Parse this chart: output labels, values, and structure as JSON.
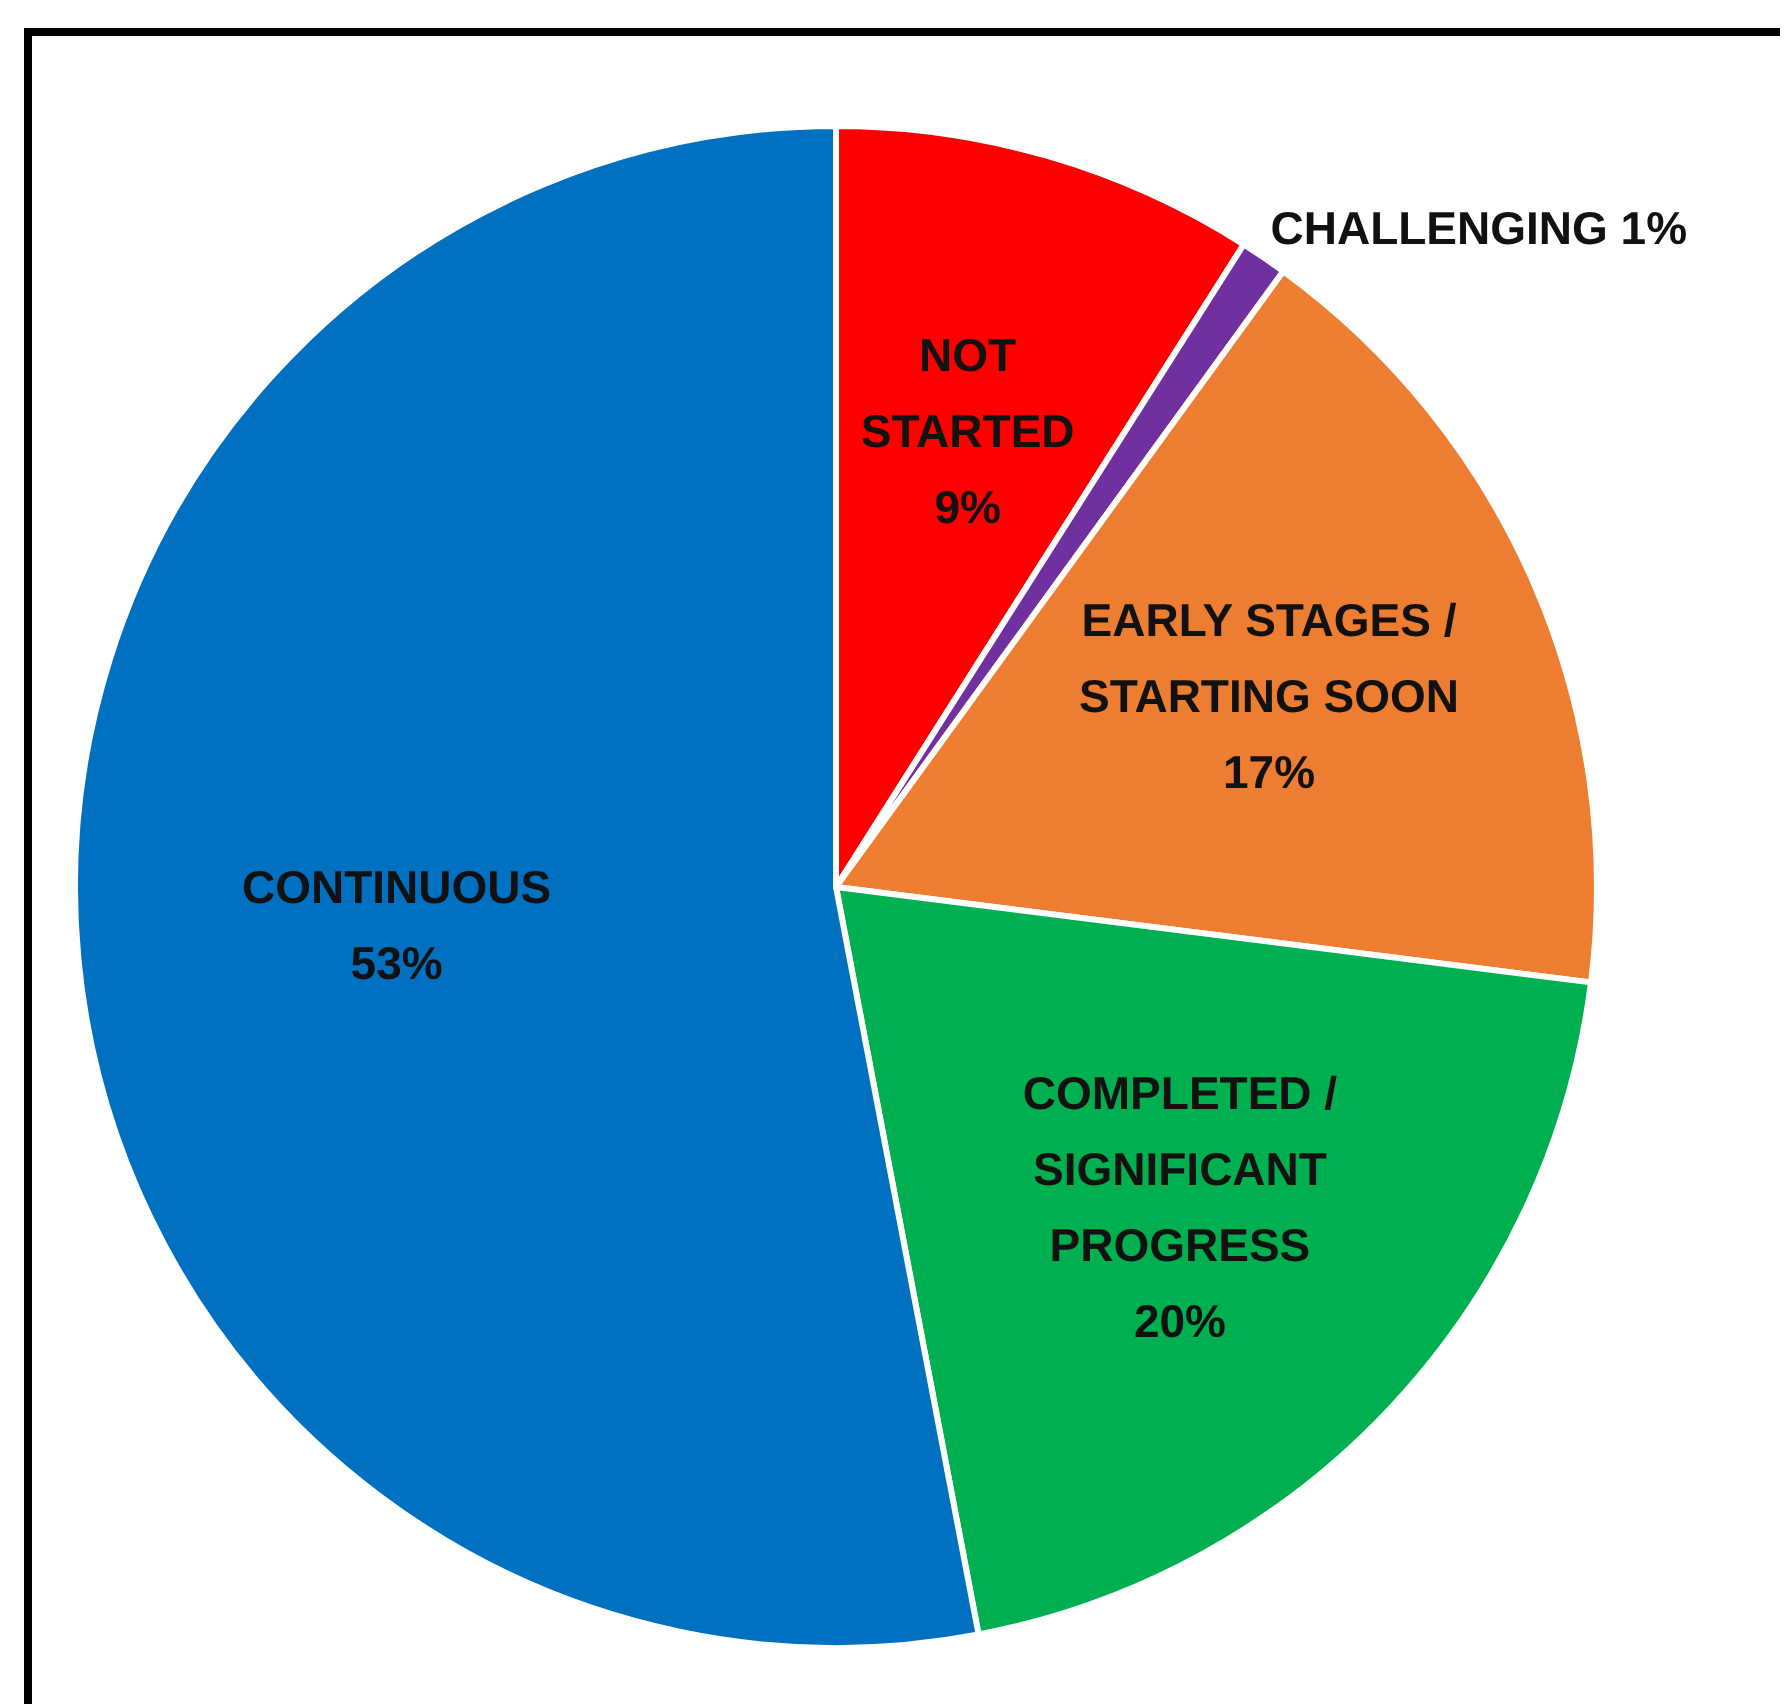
{
  "chart_data": {
    "type": "pie",
    "categories": [
      "NOT STARTED",
      "CHALLENGING",
      "EARLY STAGES / STARTING SOON",
      "COMPLETED / SIGNIFICANT PROGRESS",
      "CONTINUOUS"
    ],
    "values": [
      9,
      1,
      17,
      20,
      53
    ],
    "colors": [
      "#ff0000",
      "#7030a0",
      "#ed7d31",
      "#00b050",
      "#0070c0"
    ],
    "value_labels": [
      "9%",
      "1%",
      "17%",
      "20%",
      "53%"
    ],
    "legend": false
  }
}
